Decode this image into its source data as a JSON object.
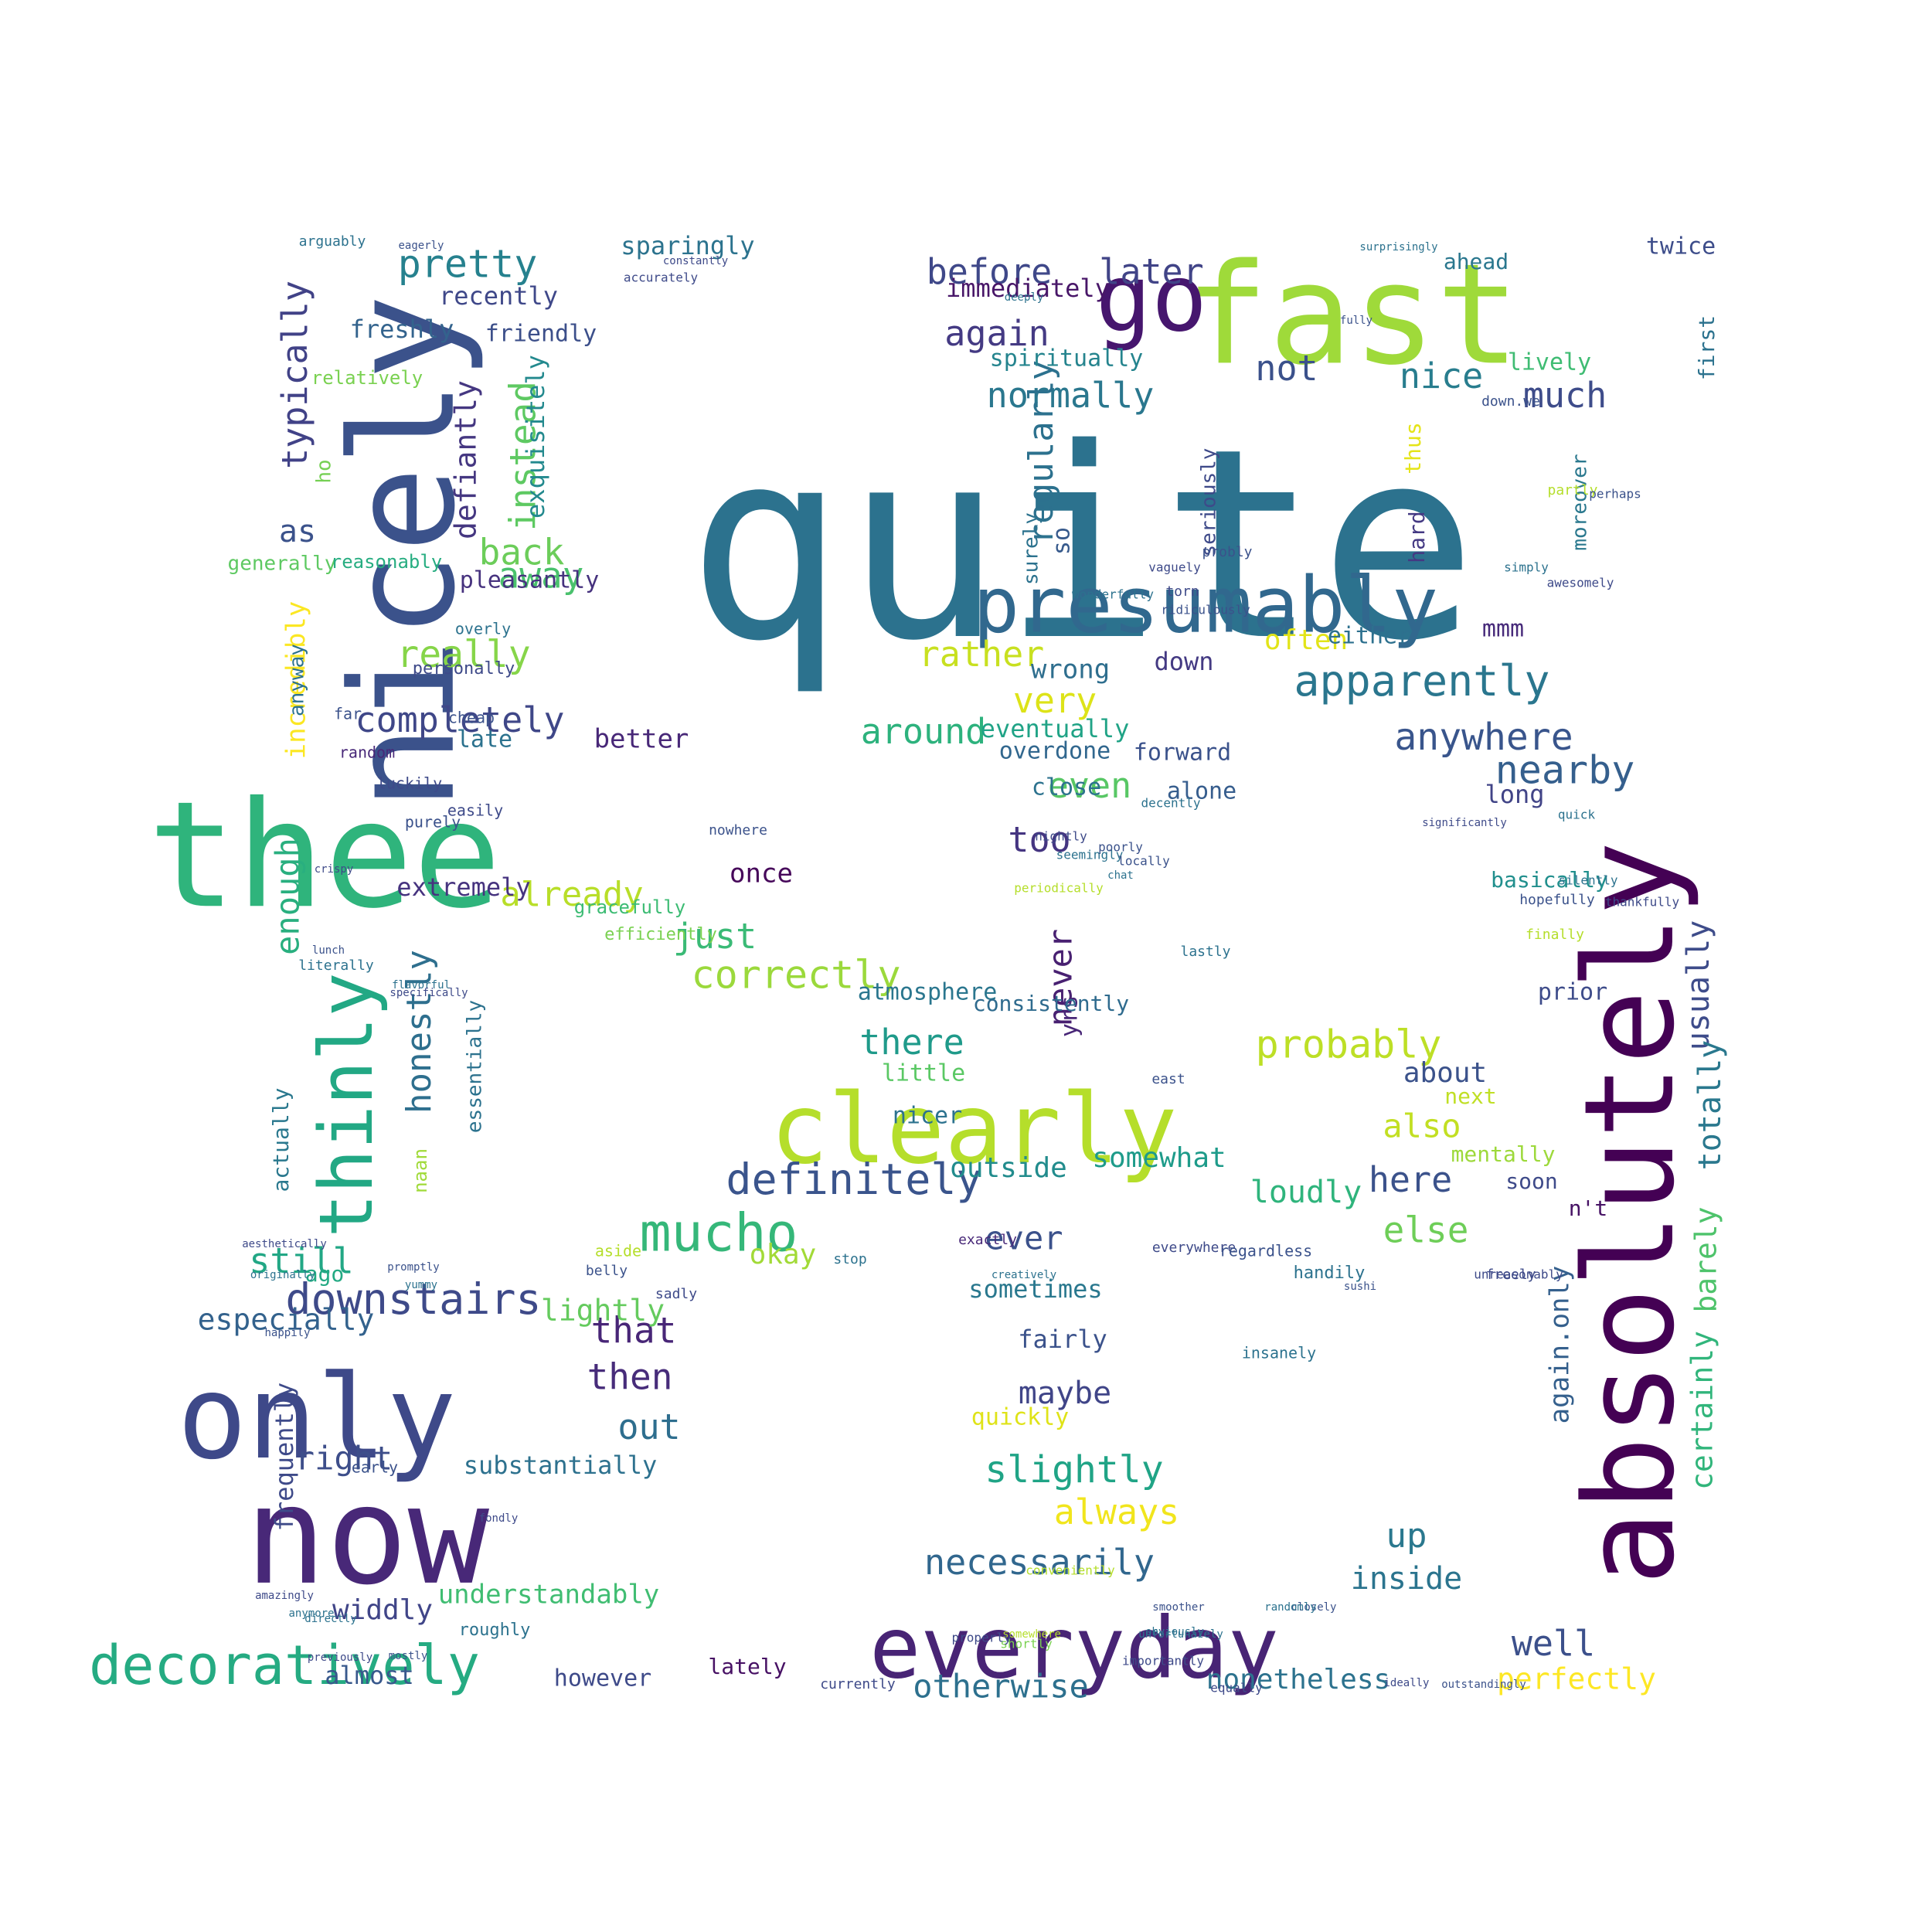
{
  "word_cloud": {
    "words": [
      {
        "text": "quite",
        "color": "#2c728e"
      },
      {
        "text": "fast",
        "color": "#9fda3a"
      },
      {
        "text": "go",
        "color": "#46166e"
      },
      {
        "text": "thee",
        "color": "#2fb47c"
      },
      {
        "text": "nicely",
        "color": "#3b528b"
      },
      {
        "text": "absolutely",
        "color": "#440154"
      },
      {
        "text": "now",
        "color": "#482878"
      },
      {
        "text": "only",
        "color": "#3e4989"
      },
      {
        "text": "clearly",
        "color": "#b5de2b"
      },
      {
        "text": "everyday",
        "color": "#482475"
      },
      {
        "text": "presumably",
        "color": "#31688e"
      },
      {
        "text": "thinly",
        "color": "#22a884"
      },
      {
        "text": "decoratively",
        "color": "#25ab82"
      },
      {
        "text": "mucho",
        "color": "#35b779"
      },
      {
        "text": "downstairs",
        "color": "#3e4a89"
      },
      {
        "text": "definitely",
        "color": "#3a548c"
      },
      {
        "text": "apparently",
        "color": "#2a768e"
      },
      {
        "text": "nearby",
        "color": "#355f8d"
      },
      {
        "text": "anywhere",
        "color": "#39558c"
      },
      {
        "text": "probably",
        "color": "#bddf26"
      },
      {
        "text": "correctly",
        "color": "#9bd93c"
      },
      {
        "text": "completely",
        "color": "#3f4788"
      },
      {
        "text": "pretty",
        "color": "#26818e"
      },
      {
        "text": "before",
        "color": "#3f4889"
      },
      {
        "text": "later",
        "color": "#414487"
      },
      {
        "text": "again",
        "color": "#443a83"
      },
      {
        "text": "normally",
        "color": "#2a778e"
      },
      {
        "text": "nice",
        "color": "#287d8e"
      },
      {
        "text": "not",
        "color": "#3b518b"
      },
      {
        "text": "much",
        "color": "#3e4c8a"
      },
      {
        "text": "really",
        "color": "#86d549"
      },
      {
        "text": "back",
        "color": "#6ccd5a"
      },
      {
        "text": "away",
        "color": "#4ac16d"
      },
      {
        "text": "instead",
        "color": "#5ec962"
      },
      {
        "text": "typically",
        "color": "#414287"
      },
      {
        "text": "as",
        "color": "#3b528b"
      },
      {
        "text": "regularly",
        "color": "#2c718e"
      },
      {
        "text": "rather",
        "color": "#c8e020"
      },
      {
        "text": "very",
        "color": "#dde318"
      },
      {
        "text": "around",
        "color": "#2db27d"
      },
      {
        "text": "even",
        "color": "#58c765"
      },
      {
        "text": "too",
        "color": "#453581"
      },
      {
        "text": "never",
        "color": "#482071"
      },
      {
        "text": "just",
        "color": "#3aba76"
      },
      {
        "text": "already",
        "color": "#b8de29"
      },
      {
        "text": "there",
        "color": "#1f9a8a"
      },
      {
        "text": "honestly",
        "color": "#2e6f8e"
      },
      {
        "text": "enough",
        "color": "#29af7f"
      },
      {
        "text": "still",
        "color": "#22a785"
      },
      {
        "text": "especially",
        "color": "#33628d"
      },
      {
        "text": "that",
        "color": "#482677"
      },
      {
        "text": "then",
        "color": "#472c7a"
      },
      {
        "text": "out",
        "color": "#2e6e8e"
      },
      {
        "text": "right",
        "color": "#3d4e8a"
      },
      {
        "text": "slightly",
        "color": "#20a486"
      },
      {
        "text": "always",
        "color": "#f1e51d"
      },
      {
        "text": "necessarily",
        "color": "#31678e"
      },
      {
        "text": "otherwise",
        "color": "#2d708e"
      },
      {
        "text": "maybe",
        "color": "#404588"
      },
      {
        "text": "well",
        "color": "#3c508b"
      },
      {
        "text": "up",
        "color": "#2a788e"
      },
      {
        "text": "inside",
        "color": "#2b748e"
      },
      {
        "text": "perfectly",
        "color": "#fde725"
      },
      {
        "text": "else",
        "color": "#6ece58"
      },
      {
        "text": "here",
        "color": "#3b528b"
      },
      {
        "text": "also",
        "color": "#c2df23"
      },
      {
        "text": "loudly",
        "color": "#2fb47c"
      },
      {
        "text": "usually",
        "color": "#3e4c8a"
      },
      {
        "text": "totally",
        "color": "#2a788e"
      },
      {
        "text": "barely",
        "color": "#4ec36b"
      },
      {
        "text": "certainly",
        "color": "#31b57b"
      },
      {
        "text": "again.only",
        "color": "#35608d"
      },
      {
        "text": "ever",
        "color": "#3b518b"
      },
      {
        "text": "outside",
        "color": "#228c8d"
      },
      {
        "text": "somewhat",
        "color": "#1e9b8a"
      },
      {
        "text": "incredibly",
        "color": "#fbe723"
      },
      {
        "text": "exquisitely",
        "color": "#23898e"
      },
      {
        "text": "defiantly",
        "color": "#453781"
      },
      {
        "text": "widdly",
        "color": "#404588"
      },
      {
        "text": "almost",
        "color": "#38588c"
      },
      {
        "text": "lately",
        "color": "#471164"
      },
      {
        "text": "however",
        "color": "#3e4a89"
      },
      {
        "text": "understandably",
        "color": "#40bd72"
      },
      {
        "text": "substantially",
        "color": "#2d718e"
      },
      {
        "text": "frequently",
        "color": "#3e4a89"
      },
      {
        "text": "lightly",
        "color": "#65cb5e"
      },
      {
        "text": "okay",
        "color": "#a2da37"
      },
      {
        "text": "once",
        "color": "#46075a"
      },
      {
        "text": "extremely",
        "color": "#46337f"
      },
      {
        "text": "better",
        "color": "#482878"
      },
      {
        "text": "late",
        "color": "#2c728e"
      },
      {
        "text": "pleasantly",
        "color": "#46327e"
      },
      {
        "text": "friendly",
        "color": "#3c4f8a"
      },
      {
        "text": "recently",
        "color": "#3f4889"
      },
      {
        "text": "sparingly",
        "color": "#2c738e"
      },
      {
        "text": "freshly",
        "color": "#33638d"
      },
      {
        "text": "immediately",
        "color": "#481668"
      },
      {
        "text": "spiritually",
        "color": "#25848e"
      },
      {
        "text": "lively",
        "color": "#3fbc73"
      },
      {
        "text": "twice",
        "color": "#3d4d8a"
      },
      {
        "text": "so",
        "color": "#375a8c"
      },
      {
        "text": "wrong",
        "color": "#2e6e8e"
      },
      {
        "text": "down",
        "color": "#443a83"
      },
      {
        "text": "often",
        "color": "#e2e418"
      },
      {
        "text": "either",
        "color": "#2d708e"
      },
      {
        "text": "mmm",
        "color": "#472a7a"
      },
      {
        "text": "eventually",
        "color": "#20a386"
      },
      {
        "text": "overdone",
        "color": "#31678e"
      },
      {
        "text": "forward",
        "color": "#3b528b"
      },
      {
        "text": "close",
        "color": "#2c728e"
      },
      {
        "text": "alone",
        "color": "#365d8d"
      },
      {
        "text": "long",
        "color": "#414487"
      },
      {
        "text": "yrs",
        "color": "#482677"
      },
      {
        "text": "atmosphere",
        "color": "#2a768e"
      },
      {
        "text": "consistently",
        "color": "#2f6b8e"
      },
      {
        "text": "little",
        "color": "#5ac864"
      },
      {
        "text": "nicer",
        "color": "#2c728e"
      },
      {
        "text": "about",
        "color": "#3b528b"
      },
      {
        "text": "next",
        "color": "#c0df25"
      },
      {
        "text": "prior",
        "color": "#3e4c8a"
      },
      {
        "text": "basically",
        "color": "#218f8d"
      },
      {
        "text": "ago",
        "color": "#23a983"
      },
      {
        "text": "sometimes",
        "color": "#2a788e"
      },
      {
        "text": "fairly",
        "color": "#3b528b"
      },
      {
        "text": "quickly",
        "color": "#dfe318"
      },
      {
        "text": "nonetheless",
        "color": "#2c728e"
      },
      {
        "text": "n't",
        "color": "#471365"
      },
      {
        "text": "mentally",
        "color": "#9dd93b"
      },
      {
        "text": "soon",
        "color": "#3e4a89"
      },
      {
        "text": "first",
        "color": "#2c728e"
      },
      {
        "text": "ahead",
        "color": "#2a778e"
      },
      {
        "text": "hard",
        "color": "#443983"
      },
      {
        "text": "thus",
        "color": "#e5e419"
      },
      {
        "text": "moreover",
        "color": "#2a788e"
      },
      {
        "text": "surely",
        "color": "#2c728e"
      },
      {
        "text": "seriously",
        "color": "#3e4a89"
      },
      {
        "text": "generally",
        "color": "#5ec962"
      },
      {
        "text": "reasonably",
        "color": "#27ad81"
      },
      {
        "text": "anyway",
        "color": "#2c728e"
      },
      {
        "text": "ho",
        "color": "#75d054"
      },
      {
        "text": "relatively",
        "color": "#7ad151"
      },
      {
        "text": "actually",
        "color": "#2a788e"
      },
      {
        "text": "naan",
        "color": "#a0da39"
      },
      {
        "text": "essentially",
        "color": "#2c728e"
      },
      {
        "text": "gracefully",
        "color": "#3dbc74"
      },
      {
        "text": "efficiently",
        "color": "#7ad151"
      },
      {
        "text": "overly",
        "color": "#2c728e"
      },
      {
        "text": "personally",
        "color": "#3e4a89"
      },
      {
        "text": "cheap",
        "color": "#3b528b"
      },
      {
        "text": "far",
        "color": "#3b528b"
      },
      {
        "text": "random",
        "color": "#482878"
      },
      {
        "text": "luckily",
        "color": "#3e4a89"
      },
      {
        "text": "purely",
        "color": "#3b528b"
      },
      {
        "text": "easily",
        "color": "#3e4a89"
      },
      {
        "text": "nowhere",
        "color": "#3b528b"
      },
      {
        "text": "literally",
        "color": "#2c728e"
      },
      {
        "text": "aside",
        "color": "#b5de2b"
      },
      {
        "text": "belly",
        "color": "#3b528b"
      },
      {
        "text": "sadly",
        "color": "#3e4a89"
      },
      {
        "text": "early",
        "color": "#3b528b"
      },
      {
        "text": "roughly",
        "color": "#2c728e"
      },
      {
        "text": "currently",
        "color": "#3e4a89"
      },
      {
        "text": "stop",
        "color": "#2c728e"
      },
      {
        "text": "exactly",
        "color": "#482878"
      },
      {
        "text": "everywhere",
        "color": "#3e4a89"
      },
      {
        "text": "regardless",
        "color": "#3b528b"
      },
      {
        "text": "handily",
        "color": "#2c728e"
      },
      {
        "text": "freely",
        "color": "#3e4a89"
      },
      {
        "text": "insanely",
        "color": "#2c728e"
      },
      {
        "text": "unreasonably",
        "color": "#3e4a89"
      },
      {
        "text": "finally",
        "color": "#b5de2b"
      },
      {
        "text": "hopefully",
        "color": "#3b528b"
      },
      {
        "text": "silently",
        "color": "#2c728e"
      },
      {
        "text": "thankfully",
        "color": "#3e4a89"
      },
      {
        "text": "quick",
        "color": "#2c728e"
      },
      {
        "text": "east",
        "color": "#3b528b"
      },
      {
        "text": "lastly",
        "color": "#2c728e"
      },
      {
        "text": "nightly",
        "color": "#3e4a89"
      },
      {
        "text": "seemingly",
        "color": "#2c728e"
      },
      {
        "text": "locally",
        "color": "#3b528b"
      },
      {
        "text": "decently",
        "color": "#2c728e"
      },
      {
        "text": "probly",
        "color": "#3b528b"
      },
      {
        "text": "torn",
        "color": "#3e4a89"
      },
      {
        "text": "ridiculously",
        "color": "#3b528b"
      },
      {
        "text": "wonderfully",
        "color": "#2c728e"
      },
      {
        "text": "vaguely",
        "color": "#3e4a89"
      },
      {
        "text": "down.we",
        "color": "#3b528b"
      },
      {
        "text": "partly",
        "color": "#b5de2b"
      },
      {
        "text": "simply",
        "color": "#2c728e"
      },
      {
        "text": "awesomely",
        "color": "#3e4a89"
      },
      {
        "text": "perhaps",
        "color": "#3b528b"
      },
      {
        "text": "arguably",
        "color": "#2c728e"
      },
      {
        "text": "accurately",
        "color": "#3e4a89"
      },
      {
        "text": "periodically",
        "color": "#b5de2b"
      },
      {
        "text": "poorly",
        "color": "#3b528b"
      },
      {
        "text": "chat",
        "color": "#2c728e"
      },
      {
        "text": "shortly",
        "color": "#7ad151"
      },
      {
        "text": "somewhere",
        "color": "#b5de2b"
      },
      {
        "text": "properly",
        "color": "#3e4a89"
      },
      {
        "text": "obviously",
        "color": "#2c728e"
      },
      {
        "text": "closely",
        "color": "#3b528b"
      },
      {
        "text": "importantly",
        "color": "#3e4a89"
      },
      {
        "text": "unfortunately",
        "color": "#2c728e"
      },
      {
        "text": "equally",
        "color": "#3e4a89"
      },
      {
        "text": "smoother",
        "color": "#3b528b"
      },
      {
        "text": "randomly",
        "color": "#2c728e"
      },
      {
        "text": "ideally",
        "color": "#3e4a89"
      },
      {
        "text": "outstandingly",
        "color": "#3b528b"
      },
      {
        "text": "conveniently",
        "color": "#b5de2b"
      },
      {
        "text": "directly",
        "color": "#2c728e"
      },
      {
        "text": "previously",
        "color": "#3e4a89"
      },
      {
        "text": "mostly",
        "color": "#3b528b"
      },
      {
        "text": "anymore",
        "color": "#2c728e"
      },
      {
        "text": "amazingly",
        "color": "#3e4a89"
      },
      {
        "text": "happily",
        "color": "#3b528b"
      },
      {
        "text": "originally",
        "color": "#2c728e"
      },
      {
        "text": "aesthetically",
        "color": "#3e4a89"
      },
      {
        "text": "promptly",
        "color": "#3b528b"
      },
      {
        "text": "yummy",
        "color": "#2c728e"
      },
      {
        "text": "crispy",
        "color": "#3e4a89"
      },
      {
        "text": "lunch",
        "color": "#3b528b"
      },
      {
        "text": "flavorful",
        "color": "#2c728e"
      },
      {
        "text": "specifically",
        "color": "#3e4a89"
      },
      {
        "text": "eagerly",
        "color": "#3b528b"
      },
      {
        "text": "constantly",
        "color": "#3e4a89"
      },
      {
        "text": "deeply",
        "color": "#2c728e"
      },
      {
        "text": "fully",
        "color": "#3b528b"
      },
      {
        "text": "surprisingly",
        "color": "#2c728e"
      },
      {
        "text": "significantly",
        "color": "#3e4a89"
      },
      {
        "text": "creatively",
        "color": "#2c728e"
      },
      {
        "text": "sushi",
        "color": "#3b528b"
      },
      {
        "text": "fondly",
        "color": "#3e4a89"
      }
    ]
  }
}
